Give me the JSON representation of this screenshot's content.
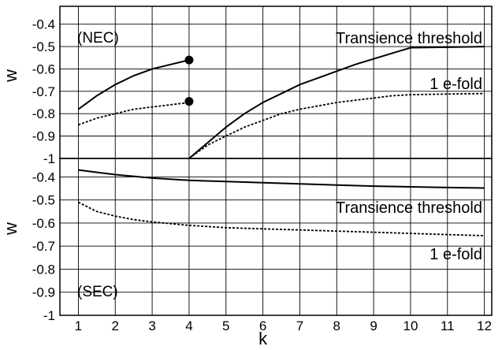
{
  "chart_data": [
    {
      "type": "line",
      "panel_label": "(NEC)",
      "ylabel": "w",
      "xlabel": "",
      "xlim": [
        0.5,
        12.2
      ],
      "ylim": [
        -1.0,
        -0.32
      ],
      "xticks": [
        1,
        2,
        3,
        4,
        5,
        6,
        7,
        8,
        9,
        10,
        11,
        12
      ],
      "yticks": [
        -0.4,
        -0.5,
        -0.6,
        -0.7,
        -0.8,
        -0.9,
        -1
      ],
      "ytick_labels": [
        "-0.4",
        "-0.5",
        "-0.6",
        "-0.7",
        "-0.8",
        "-0.9",
        "-1"
      ],
      "grid": true,
      "annotations": [
        "Transience threshold",
        "1 e-fold"
      ],
      "series": [
        {
          "style": "solid",
          "x": [
            1,
            1.5,
            2,
            2.5,
            3,
            3.5,
            4
          ],
          "y": [
            -0.78,
            -0.72,
            -0.67,
            -0.63,
            -0.6,
            -0.58,
            -0.56
          ]
        },
        {
          "style": "dotted",
          "x": [
            1,
            1.5,
            2,
            2.5,
            3,
            3.5,
            4
          ],
          "y": [
            -0.85,
            -0.82,
            -0.8,
            -0.78,
            -0.77,
            -0.76,
            -0.75
          ]
        },
        {
          "style": "solid",
          "x": [
            4,
            4.5,
            5,
            5.5,
            6,
            6.5,
            7,
            7.5,
            8,
            8.5,
            9,
            9.5,
            10,
            11,
            12
          ],
          "y": [
            -1.0,
            -0.93,
            -0.86,
            -0.8,
            -0.75,
            -0.71,
            -0.67,
            -0.64,
            -0.61,
            -0.58,
            -0.555,
            -0.53,
            -0.505,
            -0.503,
            -0.5
          ]
        },
        {
          "style": "dotted",
          "x": [
            4,
            4.5,
            5,
            5.5,
            6,
            6.5,
            7,
            7.5,
            8,
            8.5,
            9,
            9.5,
            10,
            11,
            12
          ],
          "y": [
            -1.0,
            -0.94,
            -0.9,
            -0.86,
            -0.83,
            -0.8,
            -0.78,
            -0.765,
            -0.75,
            -0.74,
            -0.73,
            -0.72,
            -0.715,
            -0.712,
            -0.71
          ]
        }
      ],
      "markers": [
        {
          "x": 4,
          "y": -0.56
        },
        {
          "x": 4,
          "y": -0.745
        }
      ]
    },
    {
      "type": "line",
      "panel_label": "(SEC)",
      "ylabel": "w",
      "xlabel": "k",
      "xlim": [
        0.5,
        12.2
      ],
      "ylim": [
        -1.0,
        -0.32
      ],
      "xticks": [
        1,
        2,
        3,
        4,
        5,
        6,
        7,
        8,
        9,
        10,
        11,
        12
      ],
      "xtick_labels": [
        "1",
        "2",
        "3",
        "4",
        "5",
        "6",
        "7",
        "8",
        "9",
        "10",
        "11",
        "12"
      ],
      "yticks": [
        -0.4,
        -0.5,
        -0.6,
        -0.7,
        -0.8,
        -0.9,
        -1
      ],
      "ytick_labels": [
        "-0.4",
        "-0.5",
        "-0.6",
        "-0.7",
        "-0.8",
        "-0.9",
        "-1"
      ],
      "grid": true,
      "annotations": [
        "Transience threshold",
        "1 e-fold"
      ],
      "series": [
        {
          "style": "solid",
          "x": [
            1,
            2,
            3,
            4,
            5,
            6,
            7,
            8,
            9,
            10,
            11,
            12
          ],
          "y": [
            -0.37,
            -0.39,
            -0.405,
            -0.415,
            -0.42,
            -0.425,
            -0.43,
            -0.435,
            -0.44,
            -0.443,
            -0.446,
            -0.448
          ]
        },
        {
          "style": "dotted",
          "x": [
            1,
            1.5,
            2,
            2.5,
            3,
            4,
            5,
            6,
            7,
            8,
            9,
            10,
            11,
            12
          ],
          "y": [
            -0.51,
            -0.55,
            -0.57,
            -0.585,
            -0.595,
            -0.61,
            -0.62,
            -0.625,
            -0.63,
            -0.635,
            -0.64,
            -0.645,
            -0.65,
            -0.655
          ]
        }
      ],
      "markers": []
    }
  ]
}
